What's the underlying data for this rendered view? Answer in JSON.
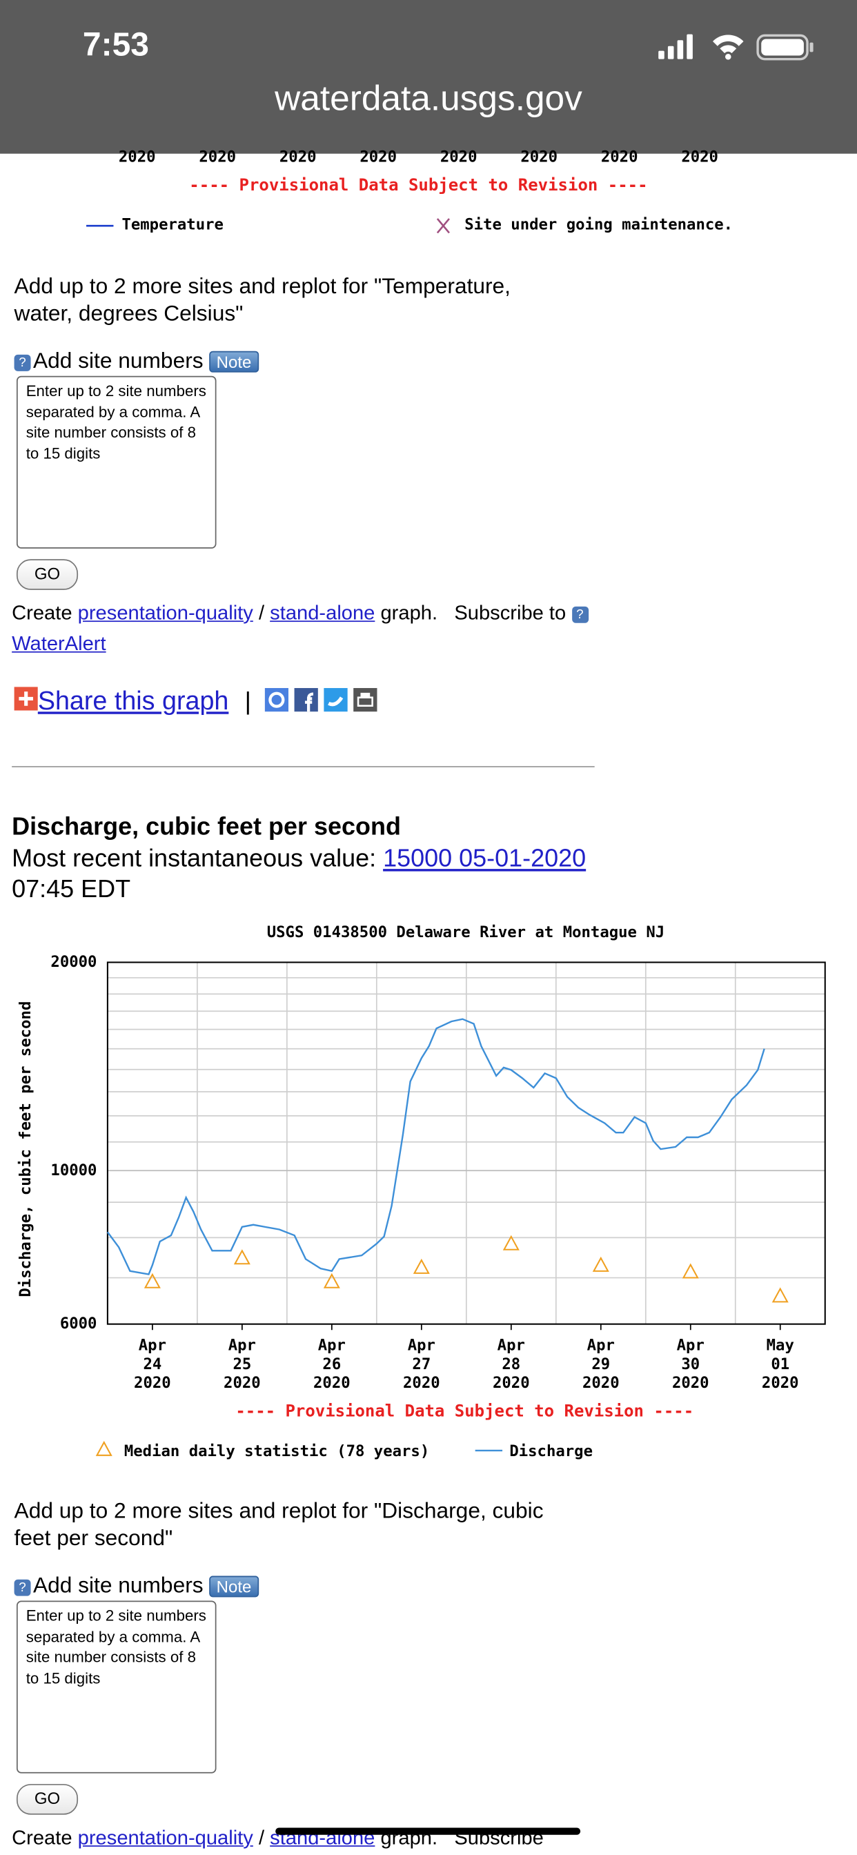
{
  "status_bar": {
    "time": "7:53",
    "url": "waterdata.usgs.gov"
  },
  "temperature_chart": {
    "x_tick_years": [
      "2020",
      "2020",
      "2020",
      "2020",
      "2020",
      "2020",
      "2020",
      "2020"
    ],
    "provisional": "---- Provisional Data Subject to Revision ----",
    "legend": [
      "Temperature",
      "Site under going maintenance."
    ]
  },
  "temperature_section": {
    "replot_text": "Add up to 2 more sites and replot for \"Temperature, water, degrees Celsius\"",
    "add_site_label": "Add site numbers",
    "note": "Note",
    "placeholder": "Enter up to 2 site numbers separated by a comma. A site number consists of 8 to 15 digits",
    "go": "GO",
    "create_line": {
      "prefix": "Create",
      "link1": "presentation-quality",
      "sep": "/",
      "link2": "stand-alone",
      "suffix": "graph.   Subscribe to",
      "link3": "WaterAlert"
    },
    "share": "Share this graph",
    "share_sep": "|"
  },
  "discharge_section": {
    "heading": "Discharge, cubic feet per second",
    "recent_label": "Most recent instantaneous value:",
    "recent_value": "15000 05-01-2020",
    "recent_time": "07:45 EDT",
    "replot_text": "Add up to 2 more sites and replot for \"Discharge, cubic feet per second\"",
    "add_site_label": "Add site numbers",
    "note": "Note",
    "placeholder": "Enter up to 2 site numbers separated by a comma. A site number consists of 8 to 15 digits",
    "go": "GO",
    "create_line": {
      "prefix": "Create",
      "link1": "presentation-quality",
      "sep": "/",
      "link2": "stand-alone",
      "suffix": "graph.   Subscribe"
    }
  },
  "chart_data": {
    "type": "line",
    "title": "USGS 01438500 Delaware River at Montague NJ",
    "y_label": "Discharge, cubic feet per second",
    "provisional": "---- Provisional Data Subject to Revision ----",
    "log_scale": true,
    "ylim": [
      6000,
      20000
    ],
    "yticks": [
      6000,
      10000,
      20000
    ],
    "y_grid_lines": [
      7000,
      8000,
      9000,
      11000,
      12000,
      13000,
      14000,
      15000,
      16000,
      17000,
      18000,
      19000
    ],
    "xlim": [
      "2020-04-24T00:00",
      "2020-05-02T00:00"
    ],
    "xticks": [
      {
        "value": "2020-04-24T12:00",
        "label": "Apr\n24\n2020"
      },
      {
        "value": "2020-04-25T12:00",
        "label": "Apr\n25\n2020"
      },
      {
        "value": "2020-04-26T12:00",
        "label": "Apr\n26\n2020"
      },
      {
        "value": "2020-04-27T12:00",
        "label": "Apr\n27\n2020"
      },
      {
        "value": "2020-04-28T12:00",
        "label": "Apr\n28\n2020"
      },
      {
        "value": "2020-04-29T12:00",
        "label": "Apr\n29\n2020"
      },
      {
        "value": "2020-04-30T12:00",
        "label": "Apr\n30\n2020"
      },
      {
        "value": "2020-05-01T12:00",
        "label": "May\n01\n2020"
      }
    ],
    "x_grid_lines": [
      "2020-04-25T00:00",
      "2020-04-26T00:00",
      "2020-04-27T00:00",
      "2020-04-28T00:00",
      "2020-04-29T00:00",
      "2020-04-30T00:00",
      "2020-05-01T00:00"
    ],
    "grid": true,
    "series": [
      {
        "name": "Median daily statistic (78 years)",
        "mark": "triangle",
        "color": "#f0a020",
        "x": [
          "2020-04-24T12:00",
          "2020-04-25T12:00",
          "2020-04-26T12:00",
          "2020-04-27T12:00",
          "2020-04-28T12:00",
          "2020-04-29T12:00",
          "2020-04-30T12:00",
          "2020-05-01T12:00"
        ],
        "values": [
          6910,
          7480,
          6910,
          7250,
          7840,
          7300,
          7140,
          6590
        ]
      },
      {
        "name": "Discharge",
        "mark": "line",
        "color": "#3d8fd8",
        "x": [
          "2020-04-24T00:00",
          "2020-04-24T03:00",
          "2020-04-24T06:00",
          "2020-04-24T11:00",
          "2020-04-24T12:00",
          "2020-04-24T14:00",
          "2020-04-24T17:00",
          "2020-04-24T19:00",
          "2020-04-24T21:00",
          "2020-04-24T23:00",
          "2020-04-25T01:00",
          "2020-04-25T04:00",
          "2020-04-25T09:00",
          "2020-04-25T12:00",
          "2020-04-25T15:00",
          "2020-04-25T22:00",
          "2020-04-26T02:00",
          "2020-04-26T05:00",
          "2020-04-26T09:00",
          "2020-04-26T12:00",
          "2020-04-26T14:00",
          "2020-04-26T20:00",
          "2020-04-27T00:00",
          "2020-04-27T02:00",
          "2020-04-27T04:00",
          "2020-04-27T07:00",
          "2020-04-27T09:00",
          "2020-04-27T12:00",
          "2020-04-27T14:00",
          "2020-04-27T16:00",
          "2020-04-27T20:00",
          "2020-04-27T23:00",
          "2020-04-28T02:00",
          "2020-04-28T04:00",
          "2020-04-28T08:00",
          "2020-04-28T10:00",
          "2020-04-28T12:00",
          "2020-04-28T15:00",
          "2020-04-28T18:00",
          "2020-04-28T21:00",
          "2020-04-29T00:00",
          "2020-04-29T03:00",
          "2020-04-29T06:00",
          "2020-04-29T09:00",
          "2020-04-29T13:00",
          "2020-04-29T16:00",
          "2020-04-29T18:00",
          "2020-04-29T21:00",
          "2020-04-30T00:00",
          "2020-04-30T02:00",
          "2020-04-30T04:00",
          "2020-04-30T08:00",
          "2020-04-30T11:00",
          "2020-04-30T14:00",
          "2020-04-30T17:00",
          "2020-04-30T20:00",
          "2020-04-30T23:00",
          "2020-05-01T03:00",
          "2020-05-01T06:00",
          "2020-05-01T07:45"
        ],
        "values": [
          8150,
          7750,
          7160,
          7080,
          7300,
          7900,
          8060,
          8550,
          9140,
          8720,
          8220,
          7660,
          7660,
          8290,
          8350,
          8220,
          8060,
          7450,
          7220,
          7160,
          7450,
          7540,
          7840,
          8030,
          8890,
          11260,
          13450,
          14540,
          15130,
          16050,
          16430,
          16560,
          16300,
          15130,
          13710,
          14090,
          13980,
          13600,
          13180,
          13820,
          13600,
          12780,
          12330,
          12040,
          11710,
          11350,
          11350,
          11950,
          11710,
          11040,
          10740,
          10820,
          11170,
          11170,
          11350,
          11950,
          12670,
          13290,
          13980,
          15000
        ]
      }
    ]
  }
}
